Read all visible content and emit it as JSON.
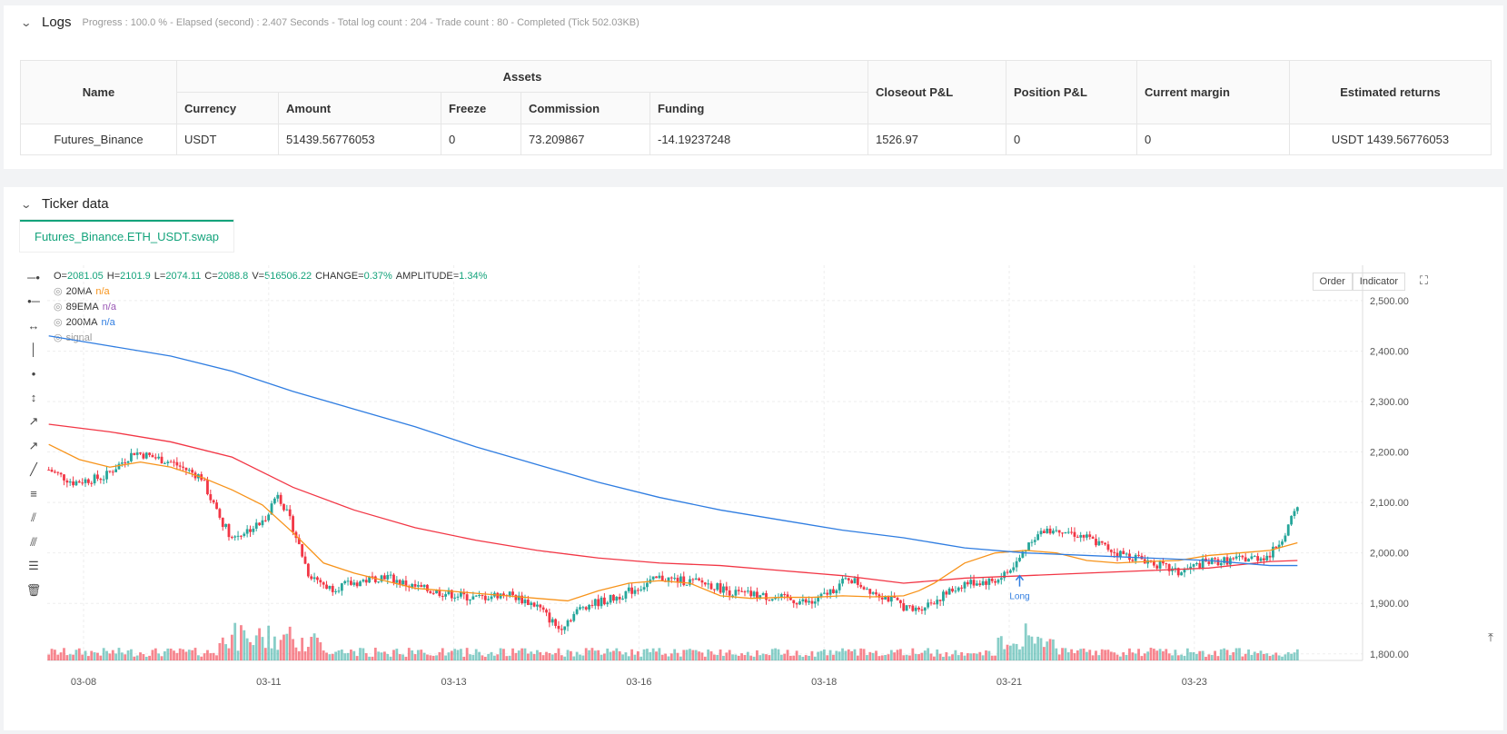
{
  "logs": {
    "title": "Logs",
    "status": "Progress : 100.0 % - Elapsed (second) : 2.407  Seconds - Total log count : 204 - Trade count : 80 - Completed (Tick 502.03KB)"
  },
  "assets_table": {
    "group_header": "Assets",
    "headers": [
      "Name",
      "Currency",
      "Amount",
      "Freeze",
      "Commission",
      "Funding",
      "Closeout P&L",
      "Position P&L",
      "Current margin",
      "Estimated returns"
    ],
    "row": [
      "Futures_Binance",
      "USDT",
      "51439.56776053",
      "0",
      "73.209867",
      "-14.19237248",
      "1526.97",
      "0",
      "0",
      "USDT 1439.56776053"
    ]
  },
  "ticker": {
    "title": "Ticker data",
    "tab": "Futures_Binance.ETH_USDT.swap"
  },
  "chart": {
    "ohlc": {
      "o_label": "O=",
      "o": "2081.05",
      "h_label": "H=",
      "h": "2101.9",
      "l_label": "L=",
      "l": "2074.11",
      "c_label": "C=",
      "c": "2088.8",
      "v_label": "V=",
      "v": "516506.22",
      "chg_label": "CHANGE=",
      "chg": "0.37%",
      "amp_label": "AMPLITUDE=",
      "amp": "1.34%"
    },
    "indicators": [
      {
        "name": "20MA",
        "value": "n/a",
        "color": "#f7931a"
      },
      {
        "name": "89EMA",
        "value": "n/a",
        "color": "#9b59b6"
      },
      {
        "name": "200MA",
        "value": "n/a",
        "color": "#2f7de1"
      },
      {
        "name": "signal",
        "value": "",
        "color": "#999999"
      }
    ],
    "buttons": {
      "order": "Order",
      "indicator": "Indicator"
    },
    "signal_label": "Long"
  },
  "chart_data": {
    "type": "candlestick",
    "x_ticks": [
      "03-08",
      "03-11",
      "03-13",
      "03-16",
      "03-18",
      "03-21",
      "03-23"
    ],
    "y_ticks": [
      "2,500.00",
      "2,400.00",
      "2,300.00",
      "2,200.00",
      "2,100.00",
      "2,000.00",
      "1,900.00",
      "1,800.00"
    ],
    "ylim": [
      1760,
      2570
    ],
    "up_color": "#26a69a",
    "down_color": "#f23645",
    "ma20": [
      [
        0,
        2215
      ],
      [
        10,
        2185
      ],
      [
        20,
        2170
      ],
      [
        30,
        2180
      ],
      [
        40,
        2170
      ],
      [
        50,
        2150
      ],
      [
        60,
        2125
      ],
      [
        70,
        2095
      ],
      [
        80,
        2040
      ],
      [
        85,
        2010
      ],
      [
        90,
        1980
      ],
      [
        100,
        1960
      ],
      [
        110,
        1945
      ],
      [
        120,
        1930
      ],
      [
        130,
        1925
      ],
      [
        140,
        1920
      ],
      [
        150,
        1915
      ],
      [
        160,
        1910
      ],
      [
        170,
        1905
      ],
      [
        180,
        1925
      ],
      [
        190,
        1940
      ],
      [
        200,
        1945
      ],
      [
        210,
        1940
      ],
      [
        220,
        1915
      ],
      [
        230,
        1910
      ],
      [
        240,
        1912
      ],
      [
        250,
        1912
      ],
      [
        260,
        1915
      ],
      [
        270,
        1913
      ],
      [
        280,
        1915
      ],
      [
        285,
        1925
      ],
      [
        290,
        1940
      ],
      [
        300,
        1980
      ],
      [
        310,
        2000
      ],
      [
        320,
        2005
      ],
      [
        330,
        2000
      ],
      [
        340,
        1985
      ],
      [
        350,
        1980
      ],
      [
        360,
        1983
      ],
      [
        370,
        1985
      ],
      [
        380,
        1995
      ],
      [
        390,
        2000
      ],
      [
        400,
        2005
      ],
      [
        409,
        2020
      ]
    ],
    "ema89": [
      [
        0,
        2255
      ],
      [
        20,
        2240
      ],
      [
        40,
        2220
      ],
      [
        60,
        2190
      ],
      [
        80,
        2130
      ],
      [
        100,
        2085
      ],
      [
        120,
        2050
      ],
      [
        140,
        2025
      ],
      [
        160,
        2005
      ],
      [
        180,
        1990
      ],
      [
        200,
        1980
      ],
      [
        220,
        1975
      ],
      [
        240,
        1965
      ],
      [
        260,
        1955
      ],
      [
        280,
        1940
      ],
      [
        290,
        1945
      ],
      [
        300,
        1950
      ],
      [
        320,
        1955
      ],
      [
        340,
        1960
      ],
      [
        360,
        1965
      ],
      [
        380,
        1970
      ],
      [
        400,
        1983
      ],
      [
        409,
        1985
      ]
    ],
    "ma200": [
      [
        0,
        2430
      ],
      [
        20,
        2410
      ],
      [
        40,
        2390
      ],
      [
        60,
        2360
      ],
      [
        80,
        2320
      ],
      [
        100,
        2285
      ],
      [
        120,
        2250
      ],
      [
        140,
        2210
      ],
      [
        160,
        2175
      ],
      [
        180,
        2140
      ],
      [
        200,
        2110
      ],
      [
        220,
        2085
      ],
      [
        240,
        2065
      ],
      [
        260,
        2045
      ],
      [
        280,
        2030
      ],
      [
        290,
        2020
      ],
      [
        300,
        2010
      ],
      [
        320,
        2000
      ],
      [
        340,
        1995
      ],
      [
        360,
        1990
      ],
      [
        380,
        1985
      ],
      [
        400,
        1975
      ],
      [
        409,
        1975
      ]
    ],
    "volume_note": "volume bars drawn by script"
  }
}
